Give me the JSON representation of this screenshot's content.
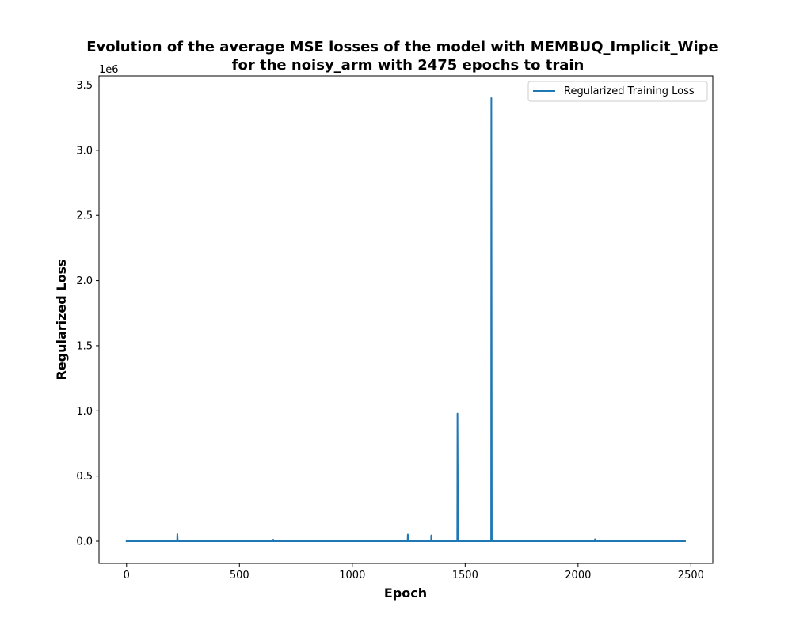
{
  "chart_data": {
    "type": "line",
    "title_line1": "Evolution of the average MSE losses of the model with MEMBUQ_Implicit_Wipe",
    "title_line2": "for the noisy_arm with 2475 epochs to train",
    "xlabel": "Epoch",
    "ylabel": "Regularized Loss",
    "y_offset_label": "1e6",
    "xlim": [
      -122,
      2597
    ],
    "ylim": [
      -170000,
      3570000
    ],
    "x_ticks": [
      0,
      500,
      1000,
      1500,
      2000,
      2500
    ],
    "x_tick_labels": [
      "0",
      "500",
      "1000",
      "1500",
      "2000",
      "2500"
    ],
    "y_ticks": [
      0,
      500000,
      1000000,
      1500000,
      2000000,
      2500000,
      3000000,
      3500000
    ],
    "y_tick_labels": [
      "0.0",
      "0.5",
      "1.0",
      "1.5",
      "2.0",
      "2.5",
      "3.0",
      "3.5"
    ],
    "grid": false,
    "legend_position": "top-right",
    "series": [
      {
        "name": "Regularized Training Loss",
        "color": "#1f77b4",
        "x": [
          0,
          224,
          225,
          226,
          227,
          649,
          650,
          651,
          1245,
          1246,
          1247,
          1248,
          1349,
          1350,
          1351,
          1352,
          1465,
          1466,
          1467,
          1468,
          1615,
          1616,
          1617,
          1618,
          2074,
          2075,
          2076,
          2474
        ],
        "y": [
          0,
          0,
          55000,
          25000,
          0,
          0,
          12000,
          0,
          0,
          52000,
          30000,
          0,
          0,
          45000,
          28000,
          0,
          0,
          980000,
          600000,
          0,
          0,
          3400000,
          1800000,
          0,
          0,
          15000,
          0,
          0
        ]
      }
    ]
  }
}
